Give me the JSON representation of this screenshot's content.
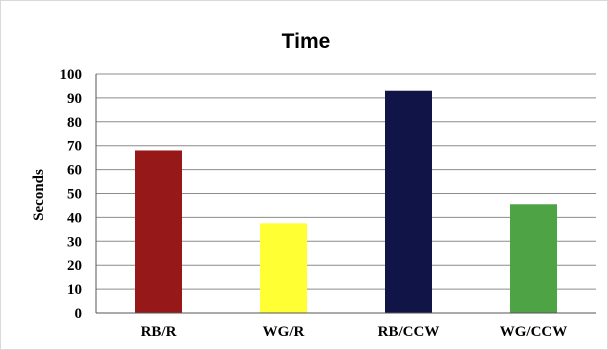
{
  "chart_data": {
    "type": "bar",
    "title": "Time",
    "xlabel": "",
    "ylabel": "Seconds",
    "categories": [
      "RB/R",
      "WG/R",
      "RB/CCW",
      "WG/CCW"
    ],
    "values": [
      68,
      37.5,
      93,
      45.5
    ],
    "colors": [
      "#971818",
      "#ffff33",
      "#111447",
      "#4ea444"
    ],
    "ylim": [
      0,
      100
    ],
    "yticks": [
      0,
      10,
      20,
      30,
      40,
      50,
      60,
      70,
      80,
      90,
      100
    ],
    "grid": true,
    "legend": "none"
  }
}
